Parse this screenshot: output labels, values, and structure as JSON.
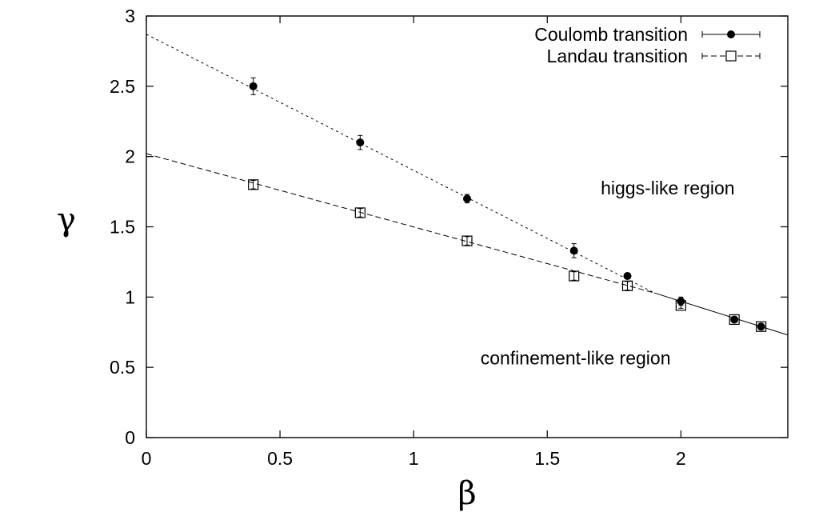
{
  "chart_data": {
    "type": "scatter",
    "xlabel": "β",
    "ylabel": "γ",
    "xlim": [
      0,
      2.4
    ],
    "ylim": [
      0,
      3
    ],
    "xticks": [
      "0",
      "0.5",
      "1",
      "1.5",
      "2"
    ],
    "xtick_values": [
      0,
      0.5,
      1,
      1.5,
      2
    ],
    "yticks": [
      "0",
      "0.5",
      "1",
      "1.5",
      "2",
      "2.5",
      "3"
    ],
    "ytick_values": [
      0,
      0.5,
      1,
      1.5,
      2,
      2.5,
      3
    ],
    "grid": false,
    "legend_position": "top-right",
    "series": [
      {
        "name": "Coulomb transition",
        "marker": "filled-circle",
        "line": "solid",
        "color": "#000000",
        "x": [
          0.4,
          0.8,
          1.2,
          1.6,
          1.8,
          2.0,
          2.2,
          2.3
        ],
        "y": [
          2.5,
          2.1,
          1.7,
          1.33,
          1.15,
          0.97,
          0.84,
          0.79
        ],
        "err": [
          0.06,
          0.05,
          0.03,
          0.05,
          0.02,
          0.03,
          0.02,
          0.02
        ]
      },
      {
        "name": "Landau transition",
        "marker": "open-square",
        "line": "dashed",
        "color": "#000000",
        "x": [
          0.4,
          0.8,
          1.2,
          1.6,
          1.8,
          2.0,
          2.2,
          2.3
        ],
        "y": [
          1.8,
          1.6,
          1.4,
          1.15,
          1.08,
          0.94,
          0.84,
          0.79
        ],
        "err": [
          0.03,
          0.03,
          0.03,
          0.03,
          0.03,
          0.02,
          0.02,
          0.02
        ]
      }
    ],
    "fit_lines": [
      {
        "style": "dotted",
        "x": [
          0,
          1.9
        ],
        "y": [
          2.87,
          1.03
        ]
      },
      {
        "style": "dashed",
        "x": [
          0,
          1.9
        ],
        "y": [
          2.02,
          1.03
        ]
      },
      {
        "style": "solid",
        "x": [
          1.9,
          2.4
        ],
        "y": [
          1.03,
          0.73
        ]
      }
    ],
    "annotations": [
      {
        "text": "higgs-like region",
        "x": 1.7,
        "y": 1.73
      },
      {
        "text": "confinement-like region",
        "x": 1.25,
        "y": 0.52
      }
    ]
  }
}
